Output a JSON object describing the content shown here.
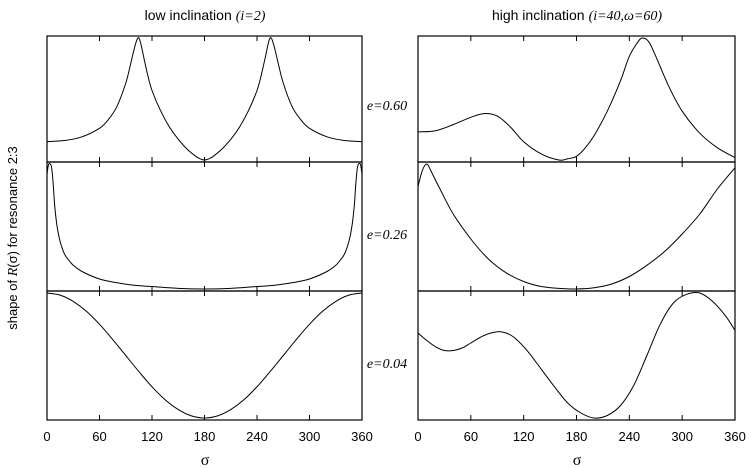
{
  "chart_data": {
    "type": "line",
    "ylabel": {
      "prefix": "shape of ",
      "func": "R",
      "mid": "(σ) for resonance 2:3"
    },
    "xlabel": "σ",
    "xlim": [
      0,
      360
    ],
    "xticks": [
      "0",
      "60",
      "120",
      "180",
      "240",
      "300",
      "360"
    ],
    "columns": [
      {
        "title": "low inclination",
        "subtitle": "(i=2)",
        "panels": [
          {
            "label": "e=0.60",
            "ylim": [
              0,
              1
            ],
            "x": [
              0,
              20,
              40,
              60,
              70,
              80,
              90,
              95,
              100,
              103,
              105,
              107,
              110,
              115,
              120,
              130,
              140,
              150,
              160,
              170,
              175,
              180,
              185,
              190,
              200,
              210,
              220,
              230,
              240,
              245,
              250,
              253,
              255,
              257,
              260,
              265,
              270,
              280,
              290,
              300,
              320,
              340,
              360
            ],
            "y": [
              0.15,
              0.16,
              0.19,
              0.26,
              0.33,
              0.44,
              0.63,
              0.77,
              0.92,
              0.99,
              1.0,
              0.96,
              0.86,
              0.7,
              0.57,
              0.4,
              0.27,
              0.17,
              0.09,
              0.03,
              0.01,
              0.0,
              0.01,
              0.03,
              0.09,
              0.17,
              0.27,
              0.4,
              0.57,
              0.7,
              0.86,
              0.96,
              1.0,
              0.99,
              0.92,
              0.77,
              0.63,
              0.44,
              0.33,
              0.26,
              0.19,
              0.16,
              0.15
            ]
          },
          {
            "label": "e=0.26",
            "ylim": [
              0,
              1
            ],
            "x": [
              0,
              2,
              5,
              7,
              9,
              12,
              15,
              20,
              25,
              30,
              40,
              60,
              80,
              100,
              120,
              150,
              180,
              210,
              240,
              260,
              280,
              300,
              320,
              330,
              335,
              340,
              345,
              348,
              351,
              353,
              355,
              358,
              360
            ],
            "y": [
              0.92,
              1.0,
              0.98,
              0.85,
              0.65,
              0.48,
              0.38,
              0.28,
              0.23,
              0.19,
              0.14,
              0.08,
              0.05,
              0.03,
              0.02,
              0.005,
              0.0,
              0.005,
              0.02,
              0.03,
              0.05,
              0.08,
              0.14,
              0.19,
              0.23,
              0.28,
              0.38,
              0.48,
              0.65,
              0.85,
              0.98,
              1.0,
              0.92
            ]
          },
          {
            "label": "e=0.04",
            "ylim": [
              0,
              1
            ],
            "x": [
              0,
              15,
              30,
              45,
              60,
              75,
              90,
              105,
              120,
              135,
              150,
              165,
              180,
              195,
              210,
              225,
              240,
              255,
              270,
              285,
              300,
              315,
              330,
              345,
              360
            ],
            "y": [
              1.0,
              0.983,
              0.933,
              0.854,
              0.75,
              0.629,
              0.5,
              0.371,
              0.25,
              0.146,
              0.067,
              0.017,
              0.0,
              0.017,
              0.067,
              0.146,
              0.25,
              0.371,
              0.5,
              0.629,
              0.75,
              0.854,
              0.933,
              0.983,
              1.0
            ]
          }
        ]
      },
      {
        "title": "high inclination",
        "subtitle": "(i=40,ω=60)",
        "panels": [
          {
            "label": "",
            "ylim": [
              0,
              1
            ],
            "x": [
              0,
              20,
              40,
              60,
              75,
              90,
              105,
              120,
              140,
              160,
              170,
              180,
              190,
              200,
              215,
              230,
              240,
              250,
              255,
              262,
              270,
              285,
              300,
              320,
              340,
              360
            ],
            "y": [
              0.23,
              0.24,
              0.29,
              0.35,
              0.38,
              0.36,
              0.27,
              0.15,
              0.05,
              0.0,
              0.01,
              0.03,
              0.1,
              0.2,
              0.4,
              0.65,
              0.85,
              0.97,
              1.0,
              0.97,
              0.85,
              0.6,
              0.4,
              0.22,
              0.1,
              0.02
            ]
          },
          {
            "label": "",
            "ylim": [
              0,
              1
            ],
            "x": [
              0,
              5,
              10,
              15,
              25,
              40,
              60,
              80,
              100,
              120,
              140,
              160,
              180,
              200,
              220,
              240,
              260,
              280,
              300,
              320,
              340,
              360
            ],
            "y": [
              0.82,
              0.95,
              1.0,
              0.94,
              0.8,
              0.6,
              0.4,
              0.24,
              0.13,
              0.06,
              0.02,
              0.005,
              0.0,
              0.01,
              0.04,
              0.1,
              0.19,
              0.3,
              0.44,
              0.6,
              0.8,
              0.97
            ]
          },
          {
            "label": "",
            "ylim": [
              0,
              1
            ],
            "x": [
              0,
              10,
              20,
              30,
              40,
              50,
              60,
              75,
              90,
              100,
              110,
              125,
              140,
              155,
              170,
              185,
              200,
              215,
              230,
              245,
              260,
              275,
              290,
              305,
              320,
              335,
              350,
              360
            ],
            "y": [
              0.68,
              0.62,
              0.57,
              0.54,
              0.54,
              0.56,
              0.6,
              0.66,
              0.69,
              0.68,
              0.64,
              0.53,
              0.39,
              0.25,
              0.12,
              0.04,
              0.0,
              0.02,
              0.1,
              0.26,
              0.5,
              0.75,
              0.92,
              0.99,
              1.0,
              0.93,
              0.81,
              0.7
            ]
          }
        ]
      }
    ]
  }
}
